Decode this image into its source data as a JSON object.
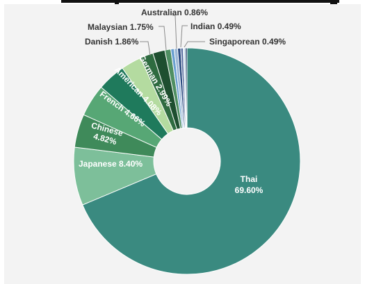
{
  "chart_data": {
    "type": "pie",
    "donut": true,
    "slices": [
      {
        "label": "Thai",
        "pct_text": "69.60%",
        "value": 69.6,
        "color": "#3a8a80"
      },
      {
        "label": "Japanese",
        "pct_text": "8.40%",
        "value": 8.4,
        "color": "#7dbf9a"
      },
      {
        "label": "Chinese",
        "pct_text": "4.82%",
        "value": 4.82,
        "color": "#3f8a5a"
      },
      {
        "label": "French",
        "pct_text": "4.66%",
        "value": 4.66,
        "color": "#57a775"
      },
      {
        "label": "American",
        "pct_text": "4.08%",
        "value": 4.08,
        "color": "#1f7a5c"
      },
      {
        "label": "German",
        "pct_text": "2.99%",
        "value": 2.99,
        "color": "#b4dba0"
      },
      {
        "label": "Danish",
        "pct_text": "1.86%",
        "value": 1.86,
        "color": "#2e6b40"
      },
      {
        "label": "Malaysian",
        "pct_text": "1.75%",
        "value": 1.75,
        "color": "#1e4f30"
      },
      {
        "label": "Australian",
        "pct_text": "0.86%",
        "value": 0.86,
        "color": "#4f8f62"
      },
      {
        "label": "Indian",
        "pct_text": "0.49%",
        "value": 0.49,
        "color": "#6a9fd0"
      },
      {
        "label": "Singaporean",
        "pct_text": "0.49%",
        "value": 0.49,
        "color": "#9bb7d6"
      }
    ],
    "extra_slivers": [
      {
        "value": 0.45,
        "color": "#2b4a80"
      },
      {
        "value": 0.35,
        "color": "#5a6fa0"
      },
      {
        "value": 0.3,
        "color": "#cfe3f0"
      },
      {
        "value": 0.25,
        "color": "#1e3a68"
      }
    ],
    "title": "",
    "legend": "none",
    "label_texts": {
      "thai_name": "Thai",
      "thai_pct": "69.60%",
      "japanese": "Japanese 8.40%",
      "chinese_name": "Chinese",
      "chinese_pct": "4.82%",
      "french": "French 4.66%",
      "american": "American 4.08%",
      "german": "German 2.99%",
      "danish": "Danish 1.86%",
      "malaysian": "Malaysian 1.75%",
      "australian": "Australian 0.86%",
      "indian": "Indian 0.49%",
      "singaporean": "Singaporean 0.49%"
    }
  }
}
